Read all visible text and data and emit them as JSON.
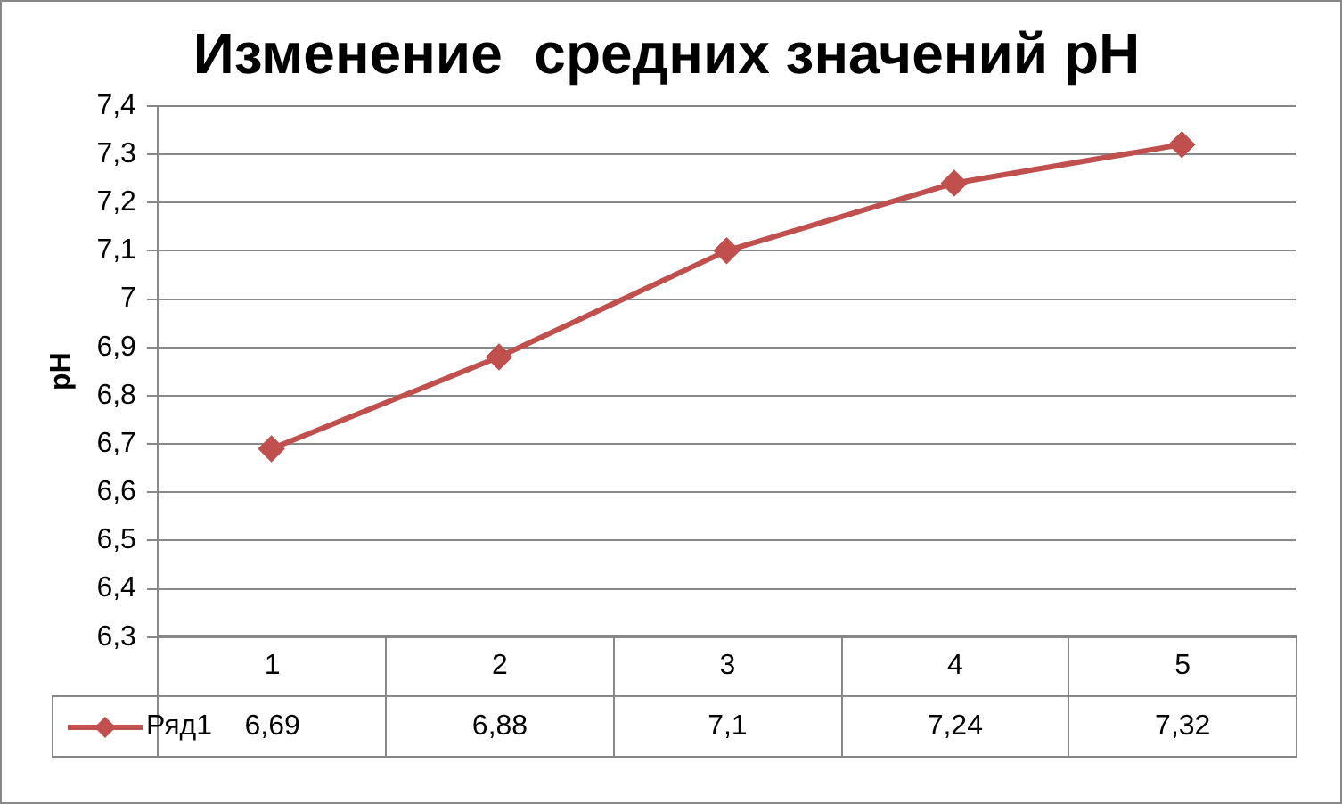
{
  "chart_data": {
    "type": "line",
    "title": "Изменение  средних значений pH",
    "ylabel": "pH",
    "categories": [
      "1",
      "2",
      "3",
      "4",
      "5"
    ],
    "series": [
      {
        "name": "Ряд1",
        "color": "#c0504d",
        "values": [
          6.69,
          6.88,
          7.1,
          7.24,
          7.32
        ],
        "value_labels": [
          "6,69",
          "6,88",
          "7,1",
          "7,24",
          "7,32"
        ]
      }
    ],
    "ylim": [
      6.3,
      7.4
    ],
    "yticks": [
      {
        "value": 6.3,
        "label": "6,3"
      },
      {
        "value": 6.4,
        "label": "6,4"
      },
      {
        "value": 6.5,
        "label": "6,5"
      },
      {
        "value": 6.6,
        "label": "6,6"
      },
      {
        "value": 6.7,
        "label": "6,7"
      },
      {
        "value": 6.8,
        "label": "6,8"
      },
      {
        "value": 6.9,
        "label": "6,9"
      },
      {
        "value": 7,
        "label": "7"
      },
      {
        "value": 7.1,
        "label": "7,1"
      },
      {
        "value": 7.2,
        "label": "7,2"
      },
      {
        "value": 7.3,
        "label": "7,3"
      },
      {
        "value": 7.4,
        "label": "7,4"
      }
    ],
    "grid": "y",
    "legend": "bottom",
    "marker": "diamond",
    "line_style": "solid"
  }
}
